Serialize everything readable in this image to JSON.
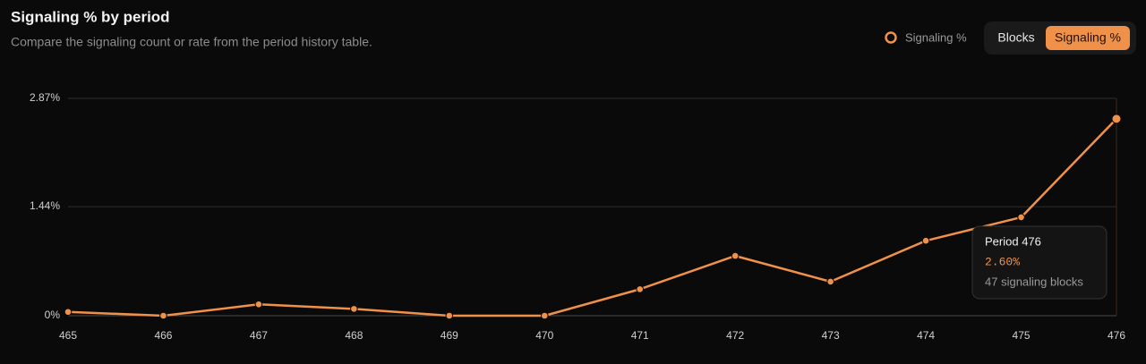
{
  "chart_data": {
    "type": "line",
    "title": "Signaling % by period",
    "subtitle": "Compare the signaling count or rate from the period history table.",
    "categories": [
      "465",
      "466",
      "467",
      "468",
      "469",
      "470",
      "471",
      "472",
      "473",
      "474",
      "475",
      "476"
    ],
    "series": [
      {
        "name": "Signaling %",
        "color": "#f0914a",
        "values": [
          0.05,
          0,
          0.15,
          0.09,
          0,
          0,
          0.35,
          0.79,
          0.45,
          0.99,
          1.3,
          2.6
        ]
      }
    ],
    "ylim": [
      0,
      2.87
    ],
    "yticks": [
      {
        "value": 0,
        "label": "0%"
      },
      {
        "value": 1.44,
        "label": "1.44%"
      },
      {
        "value": 2.87,
        "label": "2.87%"
      }
    ],
    "grid": true,
    "legend": "top-right",
    "tooltip": {
      "title": "Period 476",
      "value": "2.60%",
      "detail": "47 signaling blocks"
    },
    "toggle": {
      "options": [
        "Blocks",
        "Signaling %"
      ],
      "active": 1
    }
  }
}
